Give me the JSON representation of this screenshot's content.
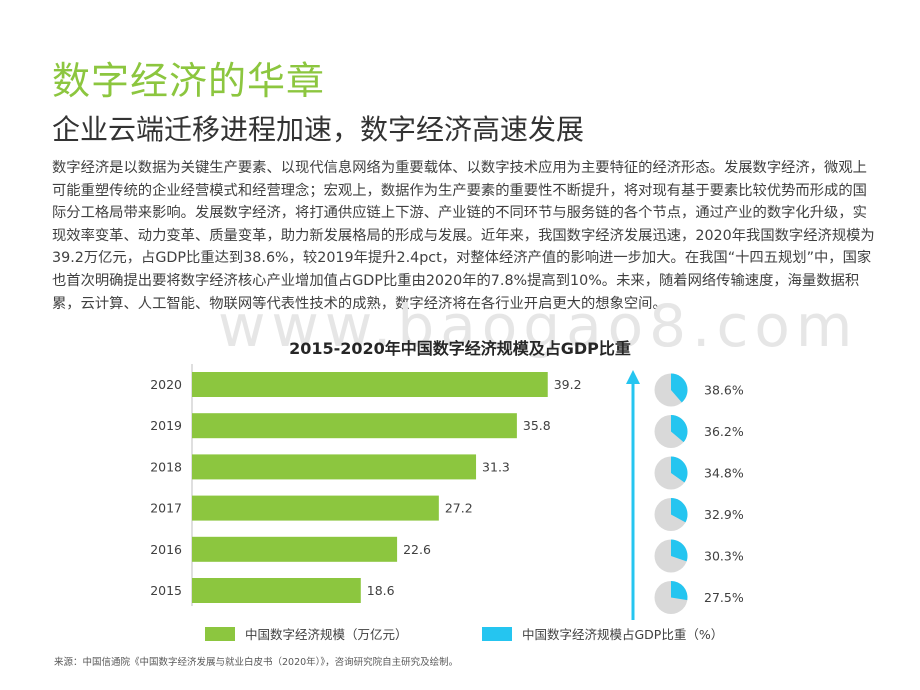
{
  "header": {
    "title": "数字经济的华章",
    "subtitle": "企业云端迁移进程加速，数字经济高速发展"
  },
  "body_text": "数字经济是以数据为关键生产要素、以现代信息网络为重要载体、以数字技术应用为主要特征的经济形态。发展数字经济，微观上可能重塑传统的企业经营模式和经营理念；宏观上，数据作为生产要素的重要性不断提升，将对现有基于要素比较优势而形成的国际分工格局带来影响。发展数字经济，将打通供应链上下游、产业链的不同环节与服务链的各个节点，通过产业的数字化升级，实现效率变革、动力变革、质量变革，助力新发展格局的形成与发展。近年来，我国数字经济发展迅速，2020年我国数字经济规模为39.2万亿元，占GDP比重达到38.6%，较2019年提升2.4pct，对整体经济产值的影响进一步加大。在我国“十四五规划”中，国家也首次明确提出要将数字经济核心产业增加值占GDP比重由2020年的7.8%提高到10%。未来，随着网络传输速度，海量数据积累，云计算、人工智能、物联网等代表性技术的成熟，数字经济将在各行业开启更大的想象空间。",
  "watermark": "www.baogao8.com",
  "source": "来源：中国信通院《中国数字经济发展与就业白皮书（2020年）》，咨询研究院自主研究及绘制。",
  "colors": {
    "accent_green": "#8cc63f",
    "bar_green": "#8cc63f",
    "pie_blue": "#25c5f0",
    "pie_gray": "#d9d9d9",
    "arrow_blue": "#25c5f0"
  },
  "chart_data": {
    "type": "bar",
    "orientation": "horizontal",
    "title": "2015-2020年中国数字经济规模及占GDP比重",
    "categories": [
      "2020",
      "2019",
      "2018",
      "2017",
      "2016",
      "2015"
    ],
    "series": [
      {
        "name": "中国数字经济规模（万亿元）",
        "values": [
          39.2,
          35.8,
          31.3,
          27.2,
          22.6,
          18.6
        ],
        "color": "#8cc63f"
      },
      {
        "name": "中国数字经济规模占GDP比重（%）",
        "values": [
          38.6,
          36.2,
          34.8,
          32.9,
          30.3,
          27.5
        ],
        "display": "pie",
        "color": "#25c5f0"
      }
    ],
    "value_labels": [
      "39.2",
      "35.8",
      "31.3",
      "27.2",
      "22.6",
      "18.6"
    ],
    "pct_labels": [
      "38.6%",
      "36.2%",
      "34.8%",
      "32.9%",
      "30.3%",
      "27.5%"
    ],
    "legend": {
      "position": "bottom",
      "bar": "中国数字经济规模（万亿元）",
      "pie": "中国数字经济规模占GDP比重（%）"
    },
    "xlim": [
      0,
      40
    ],
    "grid": false
  }
}
